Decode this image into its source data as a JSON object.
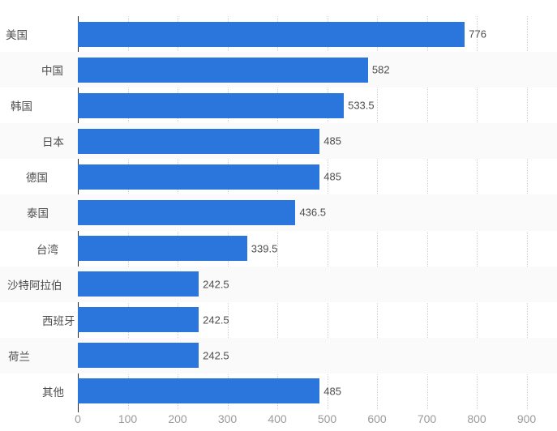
{
  "chart_data": {
    "type": "bar",
    "orientation": "horizontal",
    "title": "",
    "categories": [
      "美国",
      "中国",
      "韩国",
      "日本",
      "德国",
      "泰国",
      "台湾",
      "沙特阿拉伯",
      "西班牙",
      "荷兰",
      "其他"
    ],
    "values": [
      776,
      582,
      533.5,
      485,
      485,
      436.5,
      339.5,
      242.5,
      242.5,
      242.5,
      485
    ],
    "value_labels": [
      "776",
      "582",
      "533.5",
      "485",
      "485",
      "436.5",
      "339.5",
      "242.5",
      "242.5",
      "242.5",
      "485"
    ],
    "x_ticks": [
      0,
      100,
      200,
      300,
      400,
      500,
      600,
      700,
      800,
      900
    ],
    "xlim": [
      0,
      900
    ],
    "xlabel": "",
    "ylabel": "",
    "grid": "vertical-dotted",
    "legend": "none",
    "row_striping": "alternate",
    "colors": {
      "bar": "#2a76dd",
      "stripe": "#fafafa",
      "gridline": "#d2d2d2",
      "axis_line": "#262626",
      "category_label": "#4d4d4d",
      "value_label": "#4d4d4d",
      "tick_label": "#9b9b9b",
      "background": "#ffffff"
    }
  }
}
